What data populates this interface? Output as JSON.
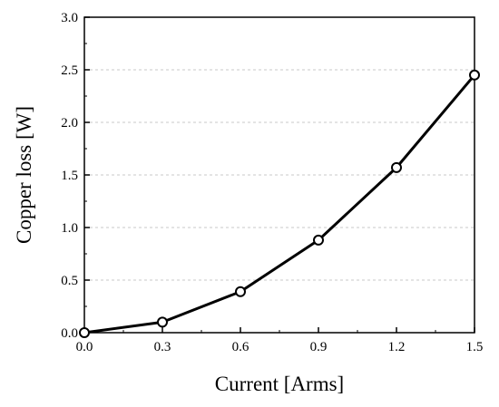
{
  "chart_data": {
    "type": "line",
    "xlabel": "Current [Arms]",
    "ylabel": "Copper loss [W]",
    "xlim": [
      0.0,
      1.5
    ],
    "ylim": [
      0.0,
      3.0
    ],
    "x_ticks": [
      "0.0",
      "0.3",
      "0.6",
      "0.9",
      "1.2",
      "1.5"
    ],
    "y_ticks": [
      "0.0",
      "0.5",
      "1.0",
      "1.5",
      "2.0",
      "2.5",
      "3.0"
    ],
    "grid": "horizontal dashed",
    "series": [
      {
        "x": [
          0.0,
          0.3,
          0.6,
          0.9,
          1.2,
          1.5
        ],
        "values": [
          0.0,
          0.1,
          0.39,
          0.88,
          1.57,
          2.45
        ],
        "color": "#000000",
        "marker": "open-circle"
      }
    ]
  }
}
